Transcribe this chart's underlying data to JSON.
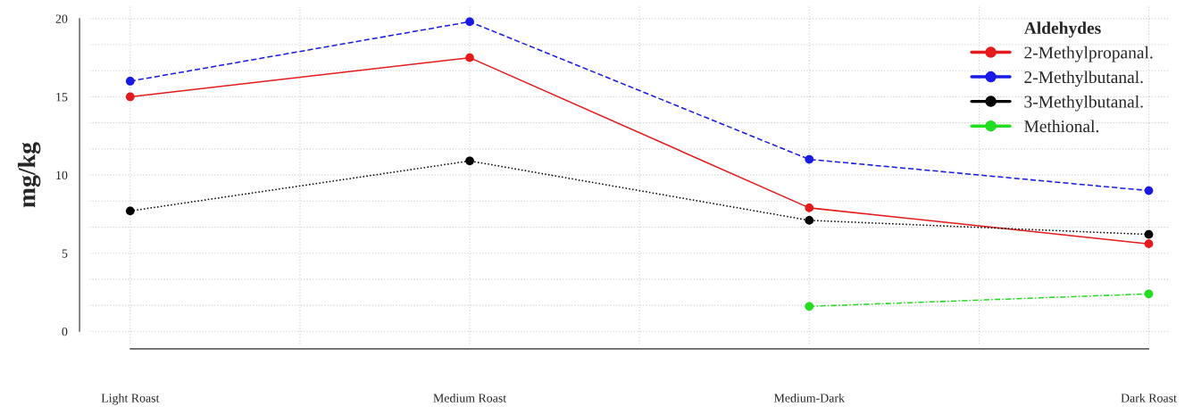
{
  "chart_data": {
    "type": "line",
    "ylabel": "mg/kg",
    "legend_title": "Aldehydes",
    "categories": [
      "Light Roast",
      "Medium Roast",
      "Medium-Dark",
      "Dark Roast"
    ],
    "series": [
      {
        "name": "2-Methylpropanal.",
        "color": "#e41a1c",
        "line_style": "solid",
        "values": [
          15.0,
          17.5,
          7.9,
          5.6
        ]
      },
      {
        "name": "2-Methylbutanal.",
        "color": "#1a1ae6",
        "line_style": "dashed",
        "values": [
          16.0,
          19.8,
          11.0,
          9.0
        ]
      },
      {
        "name": "3-Methylbutanal.",
        "color": "#000000",
        "line_style": "dotted",
        "values": [
          7.7,
          10.9,
          7.1,
          6.2
        ]
      },
      {
        "name": "Methional.",
        "color": "#22dd22",
        "line_style": "dashdot",
        "values": [
          null,
          null,
          1.6,
          2.4
        ]
      }
    ],
    "ylim": [
      -0.8,
      20.8
    ],
    "yticks": [
      0,
      {
        "value": 1.667,
        "label": null
      },
      {
        "value": 3.333,
        "label": null
      },
      5,
      {
        "value": 6.667,
        "label": null
      },
      {
        "value": 8.333,
        "label": null
      },
      10,
      {
        "value": 11.667,
        "label": null
      },
      {
        "value": 13.333,
        "label": null
      },
      15,
      {
        "value": 16.667,
        "label": null
      },
      {
        "value": 18.333,
        "label": null
      },
      20
    ],
    "grid": true,
    "legend": "top right",
    "marker": "circle"
  }
}
